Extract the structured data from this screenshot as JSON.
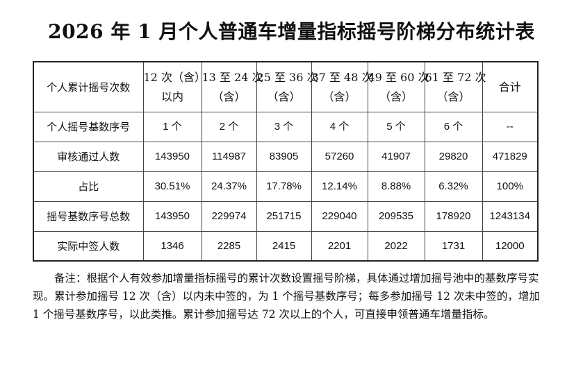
{
  "document": {
    "title": "2026 年 1 月个人普通车增量指标摇号阶梯分布统计表",
    "table": {
      "header": {
        "label": "个人累计摇号次数",
        "columns": [
          {
            "line1": "12 次（含）",
            "line2": "以内"
          },
          {
            "line1": "13 至 24 次",
            "line2": "（含）"
          },
          {
            "line1": "25 至 36 次",
            "line2": "（含）"
          },
          {
            "line1": "37 至 48 次",
            "line2": "（含）"
          },
          {
            "line1": "49 至 60 次",
            "line2": "（含）"
          },
          {
            "line1": "61 至 72 次",
            "line2": "（含）"
          }
        ],
        "total": "合计"
      },
      "rows": [
        {
          "label": "个人摇号基数序号",
          "values": [
            "1 个",
            "2 个",
            "3 个",
            "4 个",
            "5 个",
            "6 个",
            "--"
          ]
        },
        {
          "label": "审核通过人数",
          "values": [
            "143950",
            "114987",
            "83905",
            "57260",
            "41907",
            "29820",
            "471829"
          ]
        },
        {
          "label": "占比",
          "values": [
            "30.51%",
            "24.37%",
            "17.78%",
            "12.14%",
            "8.88%",
            "6.32%",
            "100%"
          ]
        },
        {
          "label": "摇号基数序号总数",
          "values": [
            "143950",
            "229974",
            "251715",
            "229040",
            "209535",
            "178920",
            "1243134"
          ]
        },
        {
          "label": "实际中签人数",
          "values": [
            "1346",
            "2285",
            "2415",
            "2201",
            "2022",
            "1731",
            "12000"
          ]
        }
      ]
    },
    "note": "备注：根据个人有效参加增量指标摇号的累计次数设置摇号阶梯，具体通过增加摇号池中的基数序号实现。累计参加摇号 12 次（含）以内未中签的，为 1 个摇号基数序号；每多参加摇号 12 次未中签的，增加 1 个摇号基数序号，以此类推。累计参加摇号达 72 次以上的个人，可直接申领普通车增量指标。"
  }
}
